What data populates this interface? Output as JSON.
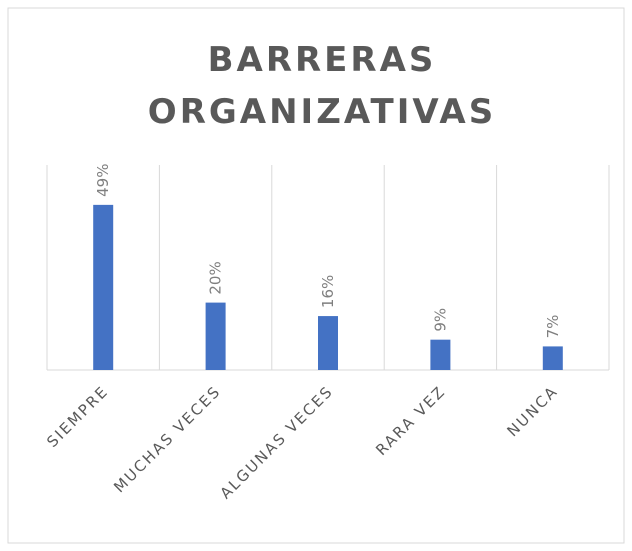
{
  "chart_data": {
    "type": "bar",
    "title": "BARRERAS ORGANIZATIVAS",
    "categories": [
      "SIEMPRE",
      "MUCHAS VECES",
      "ALGUNAS VECES",
      "RARA VEZ",
      "NUNCA"
    ],
    "values": [
      49,
      20,
      16,
      9,
      7
    ],
    "value_labels": [
      "49%",
      "20%",
      "16%",
      "9%",
      "7%"
    ],
    "color": "#4472c4",
    "grid": true
  }
}
